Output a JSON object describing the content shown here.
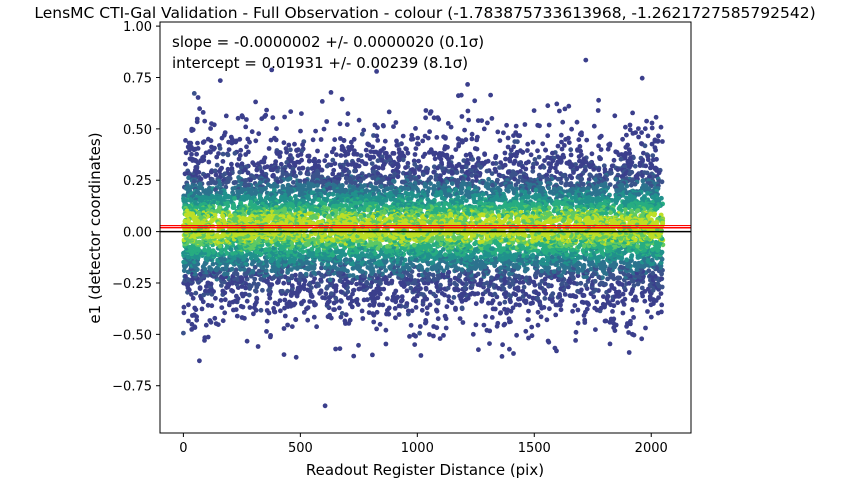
{
  "chart_data": {
    "type": "scatter",
    "title": "LensMC CTI-Gal Validation - Full Observation - colour (-1.783875733613968, -1.2621727585792542)",
    "xlabel": "Readout Register Distance (pix)",
    "ylabel": "e1 (detector coordinates)",
    "xlim": [
      -100,
      2170
    ],
    "ylim": [
      -0.98,
      1.02
    ],
    "xticks": [
      0,
      500,
      1000,
      1500,
      2000
    ],
    "xtick_labels": [
      "0",
      "500",
      "1000",
      "1500",
      "2000"
    ],
    "yticks": [
      -0.75,
      -0.5,
      -0.25,
      0.0,
      0.25,
      0.5,
      0.75,
      1.0
    ],
    "ytick_labels": [
      "−0.75",
      "−0.50",
      "−0.25",
      "0.00",
      "0.25",
      "0.50",
      "0.75",
      "1.00"
    ],
    "grid": false,
    "annotations": [
      "slope = -0.0000002 +/- 0.0000020 (0.1σ)",
      "intercept = 0.01931 +/- 0.00239 (8.1σ)"
    ],
    "point_distribution": {
      "x_range": [
        0,
        2050
      ],
      "center": 0.02,
      "spread": 0.2,
      "count": 9000,
      "color_scale": "density (viridis)"
    },
    "reference_lines": [
      {
        "kind": "fit",
        "slope": -2e-07,
        "intercept": 0.01931,
        "color": "#ff0000"
      },
      {
        "kind": "zero",
        "y": 0.0,
        "color": "#000000"
      }
    ],
    "colors": {
      "low_density": "#3b3f8c",
      "mid_density": "#21918c",
      "high_density": "#fde725"
    }
  }
}
